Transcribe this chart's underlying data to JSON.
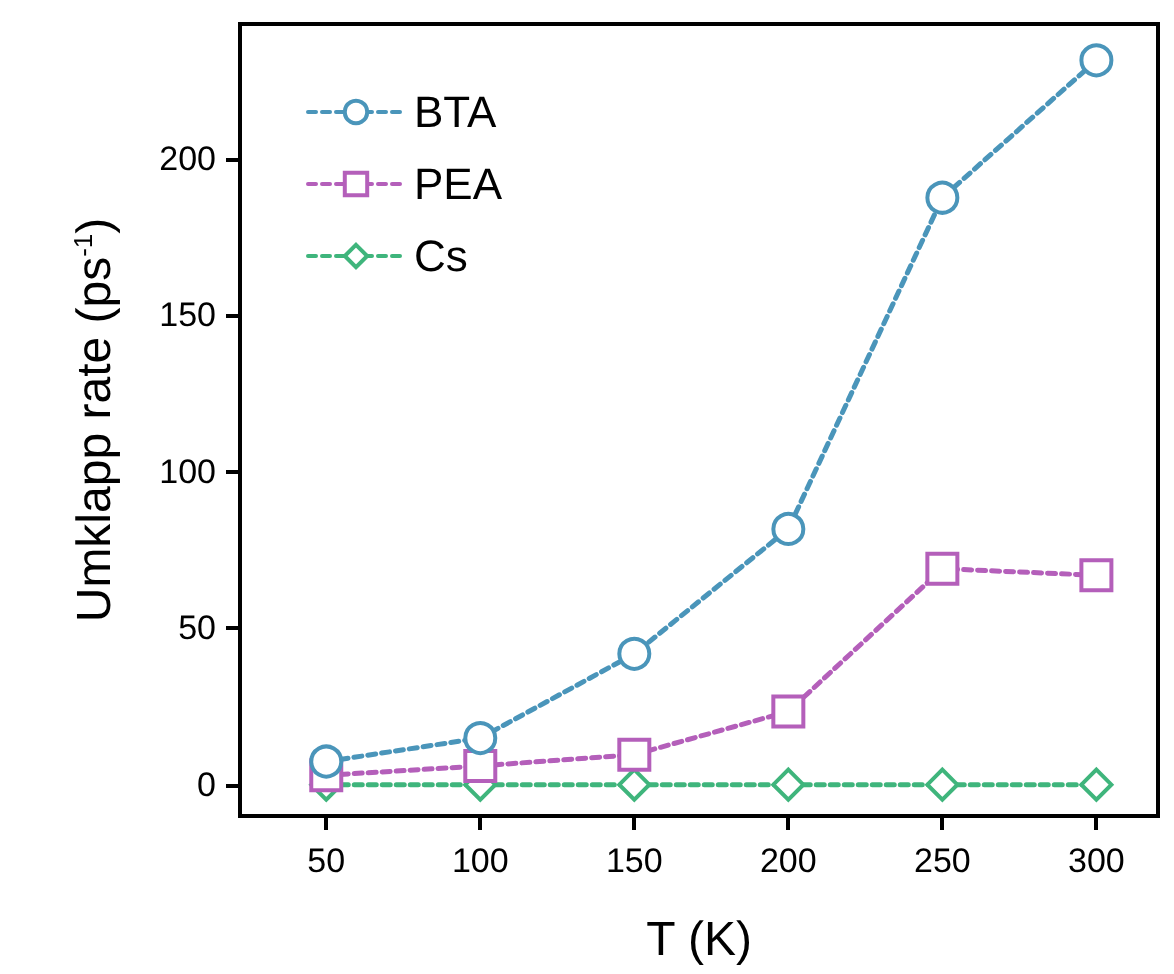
{
  "chart_data": {
    "type": "line",
    "xlabel": "T (K)",
    "ylabel": "Umklapp rate (ps$^{-1}$)",
    "x": [
      50,
      100,
      150,
      200,
      250,
      300
    ],
    "series": [
      {
        "name": "BTA",
        "color": "#4a95ba",
        "marker": "circle",
        "values": [
          7.4,
          14.9,
          41.8,
          81.7,
          187.5,
          231.4
        ]
      },
      {
        "name": "PEA",
        "color": "#b45fba",
        "marker": "square",
        "values": [
          3,
          6,
          9.6,
          23.4,
          69,
          66.9
        ]
      },
      {
        "name": "Cs",
        "color": "#3fb57c",
        "marker": "diamond",
        "values": [
          0,
          0,
          0,
          0,
          0,
          0
        ]
      }
    ],
    "xlim": [
      22,
      320
    ],
    "xticks": [
      50,
      100,
      150,
      200,
      250,
      300
    ],
    "ylim": [
      -10,
      243
    ],
    "yticks": [
      0,
      50,
      100,
      150,
      200
    ],
    "grid": false,
    "legend": "top left",
    "line_style": "dashed"
  }
}
